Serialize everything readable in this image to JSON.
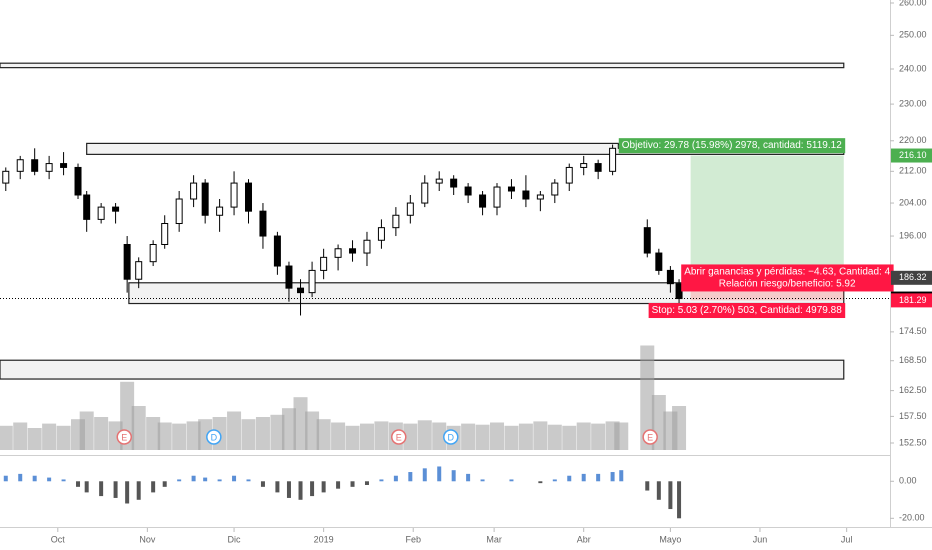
{
  "chart_data": {
    "type": "candlestick",
    "log_scale": true,
    "xlim": [
      -20,
      288
    ],
    "ylim": [
      152.5,
      260
    ],
    "xticks": [
      {
        "value": 0,
        "label": "Oct"
      },
      {
        "value": 31,
        "label": "Nov"
      },
      {
        "value": 61,
        "label": "Dic"
      },
      {
        "value": 92,
        "label": "2019"
      },
      {
        "value": 123,
        "label": "Feb"
      },
      {
        "value": 151,
        "label": "Mar"
      },
      {
        "value": 182,
        "label": "Abr"
      },
      {
        "value": 212,
        "label": "Mayo"
      },
      {
        "value": 243,
        "label": "Jun"
      },
      {
        "value": 273,
        "label": "Jul"
      }
    ],
    "yticks": [
      {
        "value": 260,
        "label": "260.00"
      },
      {
        "value": 250,
        "label": "250.00"
      },
      {
        "value": 240,
        "label": "240.00"
      },
      {
        "value": 230,
        "label": "230.00"
      },
      {
        "value": 220,
        "label": "220.00"
      },
      {
        "value": 212,
        "label": "212.00"
      },
      {
        "value": 204,
        "label": "204.00"
      },
      {
        "value": 196,
        "label": "196.00"
      },
      {
        "value": 174.5,
        "label": "174.50"
      },
      {
        "value": 168.5,
        "label": "168.50"
      },
      {
        "value": 162.5,
        "label": "162.50"
      },
      {
        "value": 157.5,
        "label": "157.50"
      },
      {
        "value": 152.5,
        "label": "152.50"
      }
    ],
    "candles": {
      "x": [
        -18,
        -13,
        -8,
        -3,
        2,
        7,
        10,
        15,
        20,
        24,
        28,
        33,
        37,
        42,
        47,
        51,
        56,
        61,
        66,
        71,
        76,
        80,
        84,
        88,
        92,
        97,
        102,
        107,
        112,
        117,
        122,
        127,
        132,
        137,
        142,
        147,
        152,
        157,
        162,
        167,
        172,
        177,
        182,
        187,
        192,
        195,
        204,
        208,
        212,
        215
      ],
      "open": [
        209,
        212,
        215,
        212,
        214,
        213,
        206,
        200,
        203,
        194,
        186,
        190,
        194,
        199,
        205,
        209,
        201,
        203,
        209,
        202,
        196,
        189,
        184,
        183,
        188,
        191,
        193,
        192,
        195,
        198,
        201,
        204,
        209,
        210,
        208,
        206,
        203,
        208,
        207,
        205,
        206,
        209,
        213,
        214,
        212,
        218,
        198,
        192,
        188,
        185
      ],
      "high": [
        213,
        216,
        218,
        216,
        217,
        214,
        207,
        204,
        204,
        196,
        191,
        195,
        201,
        207,
        211,
        210,
        205,
        212,
        210,
        204,
        197,
        190,
        186,
        190,
        193,
        194,
        195,
        197,
        200,
        203,
        206,
        211,
        212,
        211,
        209,
        207,
        209,
        210,
        211,
        207,
        210,
        214,
        216,
        215,
        219,
        220,
        200,
        193,
        189,
        186
      ],
      "low": [
        207,
        210,
        211,
        210,
        211,
        205,
        197,
        199,
        199,
        183,
        184,
        189,
        193,
        197,
        203,
        199,
        197,
        201,
        199,
        193,
        187,
        181,
        178,
        182,
        186,
        188,
        190,
        189,
        193,
        196,
        199,
        203,
        207,
        206,
        204,
        201,
        201,
        205,
        203,
        202,
        204,
        207,
        211,
        210,
        211,
        217,
        191,
        187,
        183,
        180
      ],
      "close": [
        212,
        215,
        212,
        214,
        213,
        206,
        200,
        203,
        202,
        186,
        190,
        194,
        199,
        205,
        209,
        201,
        203,
        209,
        202,
        196,
        189,
        184,
        183,
        188,
        191,
        193,
        192,
        195,
        198,
        201,
        204,
        209,
        210,
        208,
        206,
        203,
        208,
        207,
        205,
        206,
        209,
        213,
        214,
        212,
        218,
        219,
        192,
        188,
        185,
        181.69
      ]
    },
    "up_color": "#ffffff",
    "down_color": "#000000",
    "zones": [
      {
        "start": -20,
        "low": 240.4,
        "high": 241.7
      },
      {
        "start": 10,
        "low": 216.4,
        "high": 219.3
      },
      {
        "start": 24.6,
        "low": 180.6,
        "high": 185.2
      },
      {
        "start": -20,
        "low": 164.8,
        "high": 168.6
      }
    ],
    "zone_end": 272,
    "volume": {
      "color": "#9e9e9e",
      "values": [
        22,
        25,
        20,
        24,
        22,
        28,
        35,
        30,
        26,
        62,
        40,
        30,
        25,
        24,
        26,
        28,
        30,
        35,
        28,
        30,
        32,
        38,
        48,
        35,
        28,
        25,
        22,
        24,
        26,
        25,
        24,
        27,
        25,
        22,
        24,
        23,
        25,
        22,
        24,
        26,
        23,
        22,
        25,
        24,
        26,
        25,
        95,
        50,
        35,
        40
      ]
    },
    "events": [
      {
        "x": 23,
        "label": "E"
      },
      {
        "x": 54,
        "label": "D"
      },
      {
        "x": 118,
        "label": "E"
      },
      {
        "x": 136,
        "label": "D"
      },
      {
        "x": 205,
        "label": "E"
      }
    ],
    "position": {
      "start": 219,
      "end": 272,
      "target": 216.1,
      "entry": 186.32,
      "stop": 181.29,
      "target_text": "Objetivo: 29.78 (15.98%) 2978, cantidad: 5119.12",
      "pnl_text": "Abrir ganancias y pérdidas: −4.63, Cantidad: 4",
      "ratio_text": "Relación riesgo/beneficio: 5.92",
      "stop_text": "Stop: 5.03 (2.70%) 503, Cantidad: 4979.88"
    },
    "price_labels": [
      {
        "value": 216.1,
        "label": "216.10",
        "color": "#4caf50"
      },
      {
        "value": 186.32,
        "label": "186.32",
        "color": "#424242"
      },
      {
        "value": 181.69,
        "label": "181.69",
        "color": "#000000"
      },
      {
        "value": 181.29,
        "label": "181.29",
        "color": "#ff1744"
      }
    ],
    "macd": {
      "ylim": [
        -22,
        11.5
      ],
      "yticks": [
        {
          "value": 0,
          "label": "0.00"
        },
        {
          "value": -20,
          "label": "-20.00"
        }
      ],
      "positive_color": "#5b8fd6",
      "negative_color": "#555555",
      "values": [
        3,
        4,
        3,
        2,
        1,
        -3,
        -6,
        -8,
        -9,
        -12,
        -10,
        -6,
        -3,
        1,
        3,
        2,
        1,
        3,
        1,
        -3,
        -6,
        -9,
        -10,
        -8,
        -6,
        -4,
        -3,
        -2,
        1,
        3,
        5,
        7,
        8,
        6,
        4,
        1,
        0,
        1,
        0,
        -1,
        1,
        3,
        4,
        4,
        5,
        6,
        -5,
        -10,
        -15,
        -20
      ]
    }
  }
}
